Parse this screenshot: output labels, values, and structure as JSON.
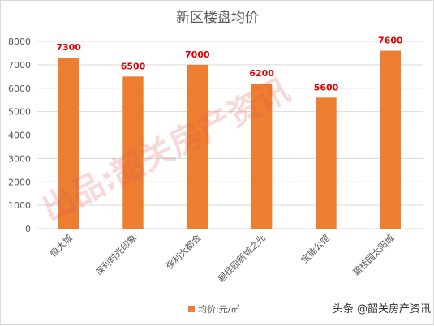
{
  "chart_data": {
    "type": "bar",
    "title": "新区楼盘均价",
    "xlabel": "",
    "ylabel": "",
    "categories": [
      "恒大城",
      "保利时光印象",
      "保利大都会",
      "碧桂园新城之光",
      "宝能公馆",
      "碧桂园太阳城"
    ],
    "series": [
      {
        "name": "均价:元/㎡",
        "values": [
          7300,
          6500,
          7000,
          6200,
          5600,
          7600
        ]
      }
    ],
    "data_labels": [
      "7300",
      "6500",
      "7000",
      "6200",
      "5600",
      "7600"
    ],
    "ylim": [
      0,
      8000
    ],
    "yticks": [
      "0",
      "1000",
      "2000",
      "3000",
      "4000",
      "5000",
      "6000",
      "7000",
      "8000"
    ],
    "grid": true,
    "legend_position": "bottom",
    "colors": {
      "bar": "#ED7D31",
      "data_label": "#E00000",
      "grid": "#D9D9D9",
      "axis_text": "#595959",
      "title": "#595959"
    }
  },
  "watermark": "出品:韶关房产资讯",
  "credit": "头条 @韶关房产资讯"
}
